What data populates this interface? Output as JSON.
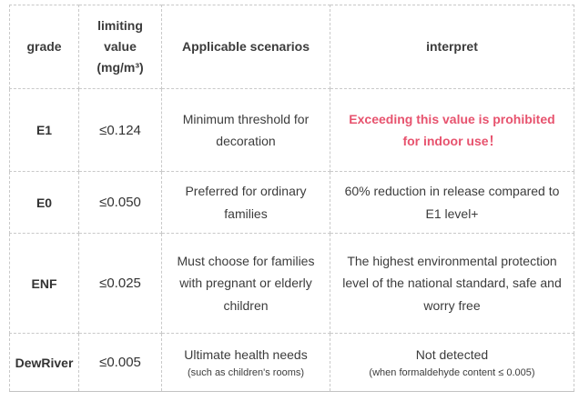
{
  "table": {
    "border_color": "#c9c9c9",
    "text_color": "#3c3c3c",
    "highlight_color": "#e7536e",
    "headers": {
      "grade": "grade",
      "limit": "limiting value (mg/m³)",
      "scenario": "Applicable scenarios",
      "interpret": "interpret"
    },
    "rows": [
      {
        "grade": "E1",
        "limit": "≤0.124",
        "scenario": "Minimum threshold for decoration",
        "interpret": "Exceeding this value is prohibited for indoor use！"
      },
      {
        "grade": "E0",
        "limit": "≤0.050",
        "scenario": "Preferred for ordinary families",
        "interpret": "60% reduction in release compared to E1 level+"
      },
      {
        "grade": "ENF",
        "limit": "≤0.025",
        "scenario": "Must choose for families with pregnant or elderly children",
        "interpret": "The highest environmental protection level of the national standard, safe and worry free"
      },
      {
        "grade": "DewRiver",
        "limit": "≤0.005",
        "scenario": "Ultimate health needs",
        "scenario_note": "(such as children's rooms)",
        "interpret": "Not detected",
        "interpret_note": "(when formaldehyde content ≤ 0.005)"
      }
    ]
  }
}
